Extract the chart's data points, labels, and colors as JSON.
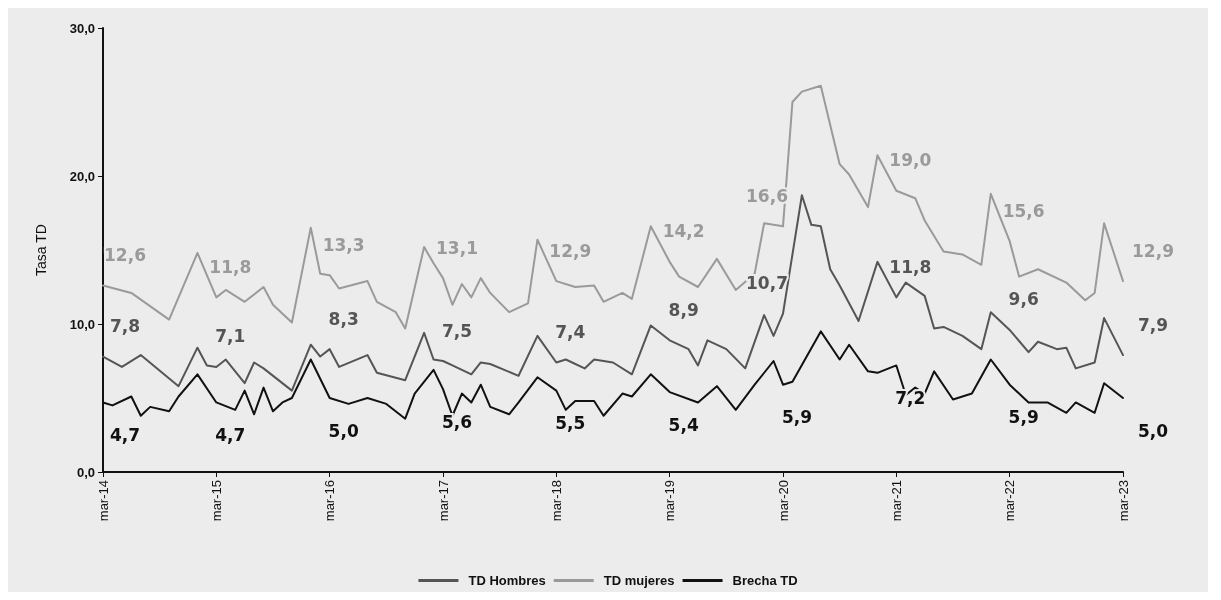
{
  "chart_data": {
    "type": "line",
    "ylabel": "Tasa TD",
    "ylim": [
      0,
      30
    ],
    "yticks": [
      {
        "value": 0,
        "label": "0,0"
      },
      {
        "value": 10,
        "label": "10,0"
      },
      {
        "value": 20,
        "label": "20,0"
      },
      {
        "value": 30,
        "label": "30,0"
      }
    ],
    "xlim": [
      "2014-03",
      "2023-03"
    ],
    "xticks": [
      {
        "value": "2014-03",
        "label": "mar-14"
      },
      {
        "value": "2015-03",
        "label": "mar-15"
      },
      {
        "value": "2016-03",
        "label": "mar-16"
      },
      {
        "value": "2017-03",
        "label": "mar-17"
      },
      {
        "value": "2018-03",
        "label": "mar-18"
      },
      {
        "value": "2019-03",
        "label": "mar-19"
      },
      {
        "value": "2020-03",
        "label": "mar-20"
      },
      {
        "value": "2021-03",
        "label": "mar-21"
      },
      {
        "value": "2022-03",
        "label": "mar-22"
      },
      {
        "value": "2023-03",
        "label": "mar-23"
      }
    ],
    "grid": false,
    "legend": "bottom",
    "marker": "none",
    "line_style": "solid",
    "series": [
      {
        "name": "TD Hombres",
        "color": "#555555",
        "x": [
          "2014-03",
          "2014-05",
          "2014-07",
          "2014-11",
          "2015-01",
          "2015-02",
          "2015-03",
          "2015-04",
          "2015-06",
          "2015-07",
          "2015-08",
          "2015-11",
          "2016-01",
          "2016-02",
          "2016-03",
          "2016-04",
          "2016-07",
          "2016-08",
          "2016-11",
          "2017-01",
          "2017-02",
          "2017-03",
          "2017-04",
          "2017-06",
          "2017-07",
          "2017-08",
          "2017-11",
          "2018-01",
          "2018-03",
          "2018-04",
          "2018-06",
          "2018-07",
          "2018-09",
          "2018-11",
          "2019-01",
          "2019-03",
          "2019-05",
          "2019-06",
          "2019-07",
          "2019-09",
          "2019-11",
          "2020-01",
          "2020-02",
          "2020-03",
          "2020-05",
          "2020-06",
          "2020-07",
          "2020-08",
          "2020-09",
          "2020-11",
          "2021-01",
          "2021-03",
          "2021-04",
          "2021-06",
          "2021-07",
          "2021-08",
          "2021-10",
          "2021-12",
          "2022-01",
          "2022-03",
          "2022-05",
          "2022-06",
          "2022-08",
          "2022-09",
          "2022-10",
          "2022-12",
          "2023-01",
          "2023-03"
        ],
        "values": [
          7.8,
          7.1,
          7.9,
          5.8,
          8.4,
          7.2,
          7.1,
          7.6,
          6.0,
          7.4,
          7.0,
          5.5,
          8.6,
          7.8,
          8.3,
          7.1,
          7.9,
          6.7,
          6.2,
          9.4,
          7.6,
          7.5,
          7.2,
          6.6,
          7.4,
          7.3,
          6.5,
          9.2,
          7.4,
          7.6,
          7.0,
          7.6,
          7.4,
          6.6,
          9.9,
          8.9,
          8.3,
          7.2,
          8.9,
          8.3,
          7.0,
          10.6,
          9.2,
          10.7,
          18.7,
          16.7,
          16.6,
          13.7,
          12.6,
          10.2,
          14.2,
          11.8,
          12.8,
          11.9,
          9.7,
          9.8,
          9.2,
          8.3,
          10.8,
          9.6,
          8.1,
          8.8,
          8.3,
          8.4,
          7.0,
          7.4,
          10.4,
          7.9
        ],
        "value_labels": [
          "7,8",
          null,
          null,
          null,
          null,
          null,
          "7,1",
          null,
          null,
          null,
          null,
          null,
          null,
          null,
          "8,3",
          null,
          null,
          null,
          null,
          null,
          null,
          "7,5",
          null,
          null,
          null,
          null,
          null,
          null,
          "7,4",
          null,
          null,
          null,
          null,
          null,
          null,
          "8,9",
          null,
          null,
          null,
          null,
          null,
          null,
          null,
          "10,7",
          null,
          null,
          null,
          null,
          null,
          null,
          null,
          "11,8",
          null,
          null,
          null,
          null,
          null,
          null,
          null,
          "9,6",
          null,
          null,
          null,
          null,
          null,
          null,
          null,
          "7,9"
        ]
      },
      {
        "name": "TD mujeres",
        "color": "#9a9a9a",
        "x": [
          "2014-03",
          "2014-06",
          "2014-10",
          "2015-01",
          "2015-03",
          "2015-04",
          "2015-06",
          "2015-08",
          "2015-09",
          "2015-11",
          "2016-01",
          "2016-02",
          "2016-03",
          "2016-04",
          "2016-07",
          "2016-08",
          "2016-10",
          "2016-11",
          "2017-01",
          "2017-02",
          "2017-03",
          "2017-04",
          "2017-05",
          "2017-06",
          "2017-07",
          "2017-08",
          "2017-10",
          "2017-12",
          "2018-01",
          "2018-03",
          "2018-05",
          "2018-07",
          "2018-08",
          "2018-10",
          "2018-11",
          "2019-01",
          "2019-03",
          "2019-04",
          "2019-06",
          "2019-08",
          "2019-10",
          "2019-12",
          "2020-01",
          "2020-03",
          "2020-04",
          "2020-05",
          "2020-07",
          "2020-09",
          "2020-10",
          "2020-12",
          "2021-01",
          "2021-03",
          "2021-05",
          "2021-06",
          "2021-08",
          "2021-10",
          "2021-12",
          "2022-01",
          "2022-03",
          "2022-04",
          "2022-06",
          "2022-09",
          "2022-11",
          "2022-12",
          "2023-01",
          "2023-03"
        ],
        "values": [
          12.6,
          12.1,
          10.3,
          14.8,
          11.8,
          12.3,
          11.5,
          12.5,
          11.3,
          10.1,
          16.5,
          13.4,
          13.3,
          12.4,
          12.9,
          11.5,
          10.8,
          9.7,
          15.2,
          14.1,
          13.1,
          11.3,
          12.7,
          11.8,
          13.1,
          12.1,
          10.8,
          11.4,
          15.7,
          12.9,
          12.5,
          12.6,
          11.5,
          12.1,
          11.7,
          16.6,
          14.2,
          13.2,
          12.5,
          14.4,
          12.3,
          13.4,
          16.8,
          16.6,
          25.0,
          25.7,
          26.1,
          20.8,
          20.1,
          17.9,
          21.4,
          19.0,
          18.5,
          17.0,
          14.9,
          14.7,
          14.0,
          18.8,
          15.6,
          13.2,
          13.7,
          12.8,
          11.6,
          12.1,
          16.8,
          12.9
        ],
        "value_labels": [
          "12,6",
          null,
          null,
          null,
          "11,8",
          null,
          null,
          null,
          null,
          null,
          null,
          null,
          "13,3",
          null,
          null,
          null,
          null,
          null,
          null,
          null,
          "13,1",
          null,
          null,
          null,
          null,
          null,
          null,
          null,
          null,
          "12,9",
          null,
          null,
          null,
          null,
          null,
          null,
          "14,2",
          null,
          null,
          null,
          null,
          null,
          null,
          "16,6",
          null,
          null,
          null,
          null,
          null,
          null,
          null,
          "19,0",
          null,
          null,
          null,
          null,
          null,
          null,
          "15,6",
          null,
          null,
          null,
          null,
          null,
          null,
          "12,9"
        ]
      },
      {
        "name": "Brecha TD",
        "color": "#111111",
        "x": [
          "2014-03",
          "2014-04",
          "2014-06",
          "2014-07",
          "2014-08",
          "2014-10",
          "2014-11",
          "2015-01",
          "2015-03",
          "2015-05",
          "2015-06",
          "2015-07",
          "2015-08",
          "2015-09",
          "2015-10",
          "2015-11",
          "2016-01",
          "2016-03",
          "2016-05",
          "2016-07",
          "2016-09",
          "2016-11",
          "2016-12",
          "2017-02",
          "2017-03",
          "2017-04",
          "2017-05",
          "2017-06",
          "2017-07",
          "2017-08",
          "2017-10",
          "2017-11",
          "2018-01",
          "2018-03",
          "2018-04",
          "2018-05",
          "2018-07",
          "2018-08",
          "2018-10",
          "2018-11",
          "2019-01",
          "2019-03",
          "2019-06",
          "2019-08",
          "2019-10",
          "2019-12",
          "2020-02",
          "2020-03",
          "2020-04",
          "2020-07",
          "2020-09",
          "2020-10",
          "2020-12",
          "2021-01",
          "2021-03",
          "2021-04",
          "2021-05",
          "2021-06",
          "2021-07",
          "2021-09",
          "2021-11",
          "2022-01",
          "2022-03",
          "2022-05",
          "2022-07",
          "2022-09",
          "2022-10",
          "2022-12",
          "2023-01",
          "2023-03"
        ],
        "values": [
          4.7,
          4.5,
          5.1,
          3.8,
          4.4,
          4.1,
          5.1,
          6.6,
          4.7,
          4.2,
          5.5,
          3.9,
          5.7,
          4.1,
          4.7,
          5.0,
          7.6,
          5.0,
          4.6,
          5.0,
          4.6,
          3.6,
          5.3,
          6.9,
          5.6,
          3.8,
          5.3,
          4.7,
          5.9,
          4.4,
          3.9,
          4.7,
          6.4,
          5.5,
          4.2,
          4.8,
          4.8,
          3.8,
          5.3,
          5.1,
          6.6,
          5.4,
          4.7,
          5.8,
          4.2,
          5.9,
          7.5,
          5.9,
          6.1,
          9.5,
          7.6,
          8.6,
          6.8,
          6.7,
          7.2,
          5.2,
          5.7,
          5.3,
          6.8,
          4.9,
          5.3,
          7.6,
          5.9,
          4.7,
          4.7,
          4.0,
          4.7,
          4.0,
          6.0,
          5.0
        ],
        "value_labels": [
          "4,7",
          null,
          null,
          null,
          null,
          null,
          null,
          null,
          "4,7",
          null,
          null,
          null,
          null,
          null,
          null,
          null,
          null,
          "5,0",
          null,
          null,
          null,
          null,
          null,
          null,
          "5,6",
          null,
          null,
          null,
          null,
          null,
          null,
          null,
          null,
          "5,5",
          null,
          null,
          null,
          null,
          null,
          null,
          null,
          "5,4",
          null,
          null,
          null,
          null,
          null,
          "5,9",
          null,
          null,
          null,
          null,
          null,
          null,
          "7,2",
          null,
          null,
          null,
          null,
          null,
          null,
          null,
          "5,9",
          null,
          null,
          null,
          null,
          null,
          null,
          "5,0"
        ]
      }
    ]
  }
}
